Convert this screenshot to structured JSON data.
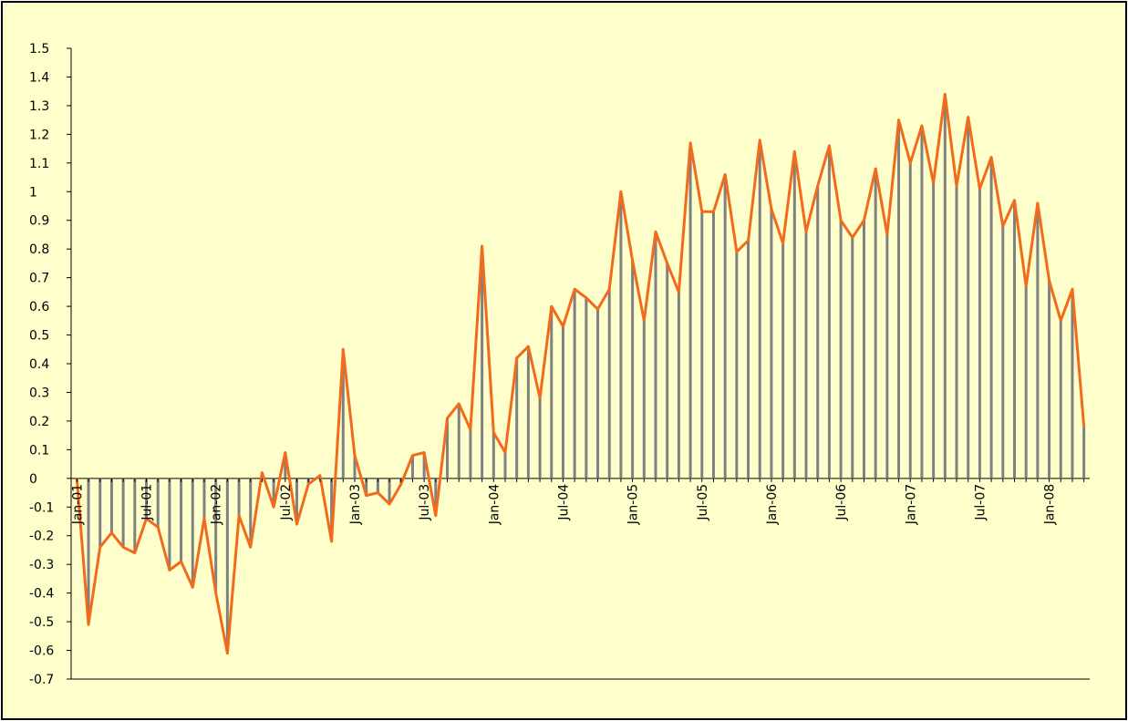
{
  "chart_data": {
    "type": "bar-line",
    "categories": [
      "Jan-01",
      null,
      null,
      null,
      null,
      null,
      "Jul-01",
      null,
      null,
      null,
      null,
      null,
      "Jan-02",
      null,
      null,
      null,
      null,
      null,
      "Jul-02",
      null,
      null,
      null,
      null,
      null,
      "Jan-03",
      null,
      null,
      null,
      null,
      null,
      "Jul-03",
      null,
      null,
      null,
      null,
      null,
      "Jan-04",
      null,
      null,
      null,
      null,
      null,
      "Jul-04",
      null,
      null,
      null,
      null,
      null,
      "Jan-05",
      null,
      null,
      null,
      null,
      null,
      "Jul-05",
      null,
      null,
      null,
      null,
      null,
      "Jan-06",
      null,
      null,
      null,
      null,
      null,
      "Jul-06",
      null,
      null,
      null,
      null,
      null,
      "Jan-07",
      null,
      null,
      null,
      null,
      null,
      "Jul-07",
      null,
      null,
      null,
      null,
      null,
      "Jan-08",
      null,
      null,
      null
    ],
    "values": [
      0,
      -0.51,
      -0.24,
      -0.19,
      -0.24,
      -0.26,
      -0.14,
      -0.17,
      -0.32,
      -0.29,
      -0.38,
      -0.14,
      -0.4,
      -0.61,
      -0.13,
      -0.24,
      0.02,
      -0.1,
      0.09,
      -0.16,
      -0.02,
      0.01,
      -0.22,
      0.45,
      0.08,
      -0.06,
      -0.05,
      -0.09,
      -0.02,
      0.08,
      0.09,
      -0.13,
      0.21,
      0.26,
      0.17,
      0.81,
      0.16,
      0.09,
      0.42,
      0.46,
      0.28,
      0.6,
      0.53,
      0.66,
      0.63,
      0.59,
      0.66,
      1.0,
      0.76,
      0.55,
      0.86,
      0.75,
      0.65,
      1.17,
      0.93,
      0.93,
      1.06,
      0.79,
      0.83,
      1.18,
      0.94,
      0.82,
      1.14,
      0.86,
      1.02,
      1.16,
      0.9,
      0.84,
      0.9,
      1.08,
      0.85,
      1.25,
      1.1,
      1.23,
      1.03,
      1.34,
      1.02,
      1.26,
      1.01,
      1.12,
      0.88,
      0.97,
      0.67,
      0.96,
      0.69,
      0.55,
      0.66,
      0.18
    ],
    "bar_color": "#808080",
    "line_color": "#f26b1d",
    "ylim": [
      -0.7,
      1.5
    ],
    "yticks": [
      -0.7,
      -0.6,
      -0.5,
      -0.4,
      -0.3,
      -0.2,
      -0.1,
      0,
      0.1,
      0.2,
      0.3,
      0.4,
      0.5,
      0.6,
      0.7,
      0.8,
      0.9,
      1,
      1.1,
      1.2,
      1.3,
      1.4,
      1.5
    ]
  }
}
